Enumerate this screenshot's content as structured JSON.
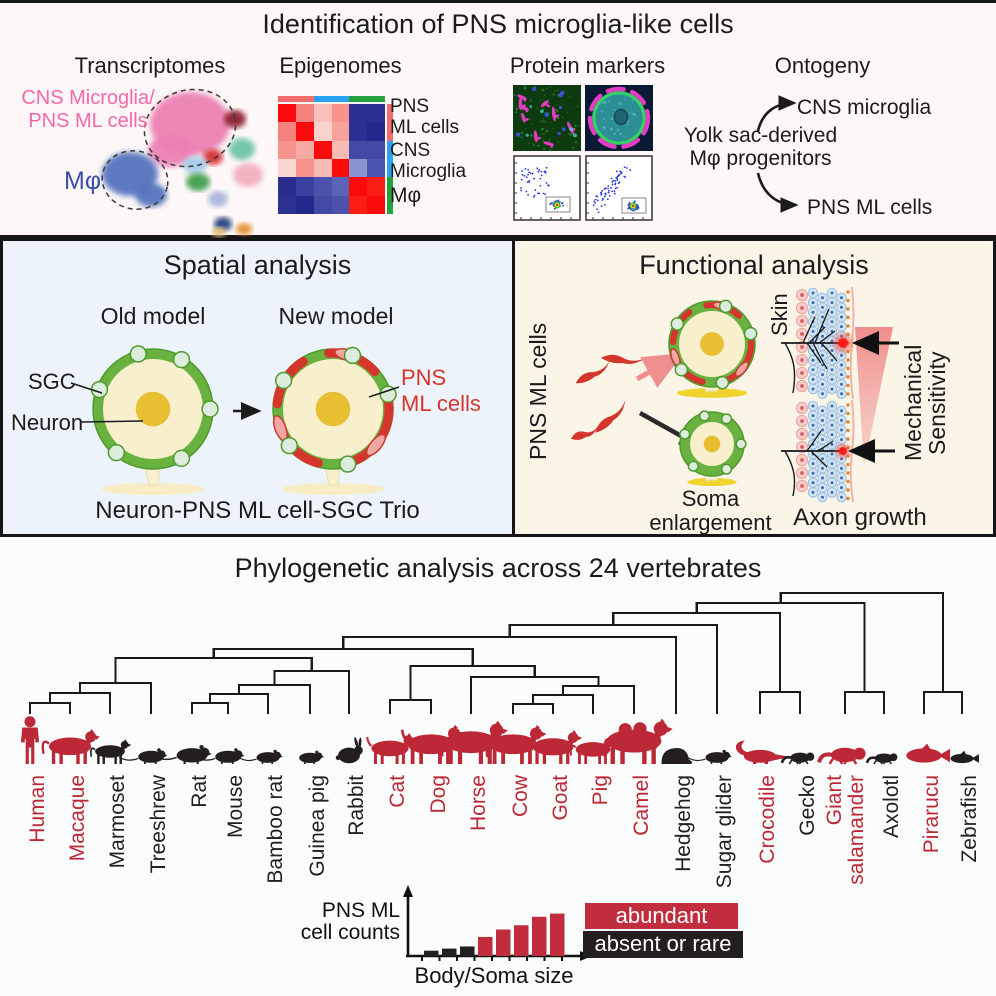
{
  "colors": {
    "ink": "#1b1b1b",
    "tree_line": "#191919",
    "abundant_red": "#bd2836",
    "absent_black": "#231f20",
    "pink_label": "#f768a8",
    "blue_label": "#3a4fa5",
    "pns_red": "#d5362c",
    "sgc_green": "#69b23f",
    "legend_abundant_bg": "#c22d3e",
    "legend_absent_bg": "#231f20",
    "spatial_bg": "#ecf3fa",
    "functional_bg": "#fbf5e7",
    "heatmap_annotation": [
      "#f26d6d",
      "#2aa3f0",
      "#23a13c"
    ],
    "umap_palette": [
      "#ec7fb2",
      "#5272bd",
      "#8e1f2f",
      "#6cc3a4",
      "#d62e32",
      "#f2aebc",
      "#a3cbe8",
      "#3f9e4d",
      "#a9b3dc",
      "#24407e",
      "#e4912c",
      "#e5c175"
    ]
  },
  "top": {
    "title": "Identification of PNS microglia-like cells",
    "transcriptomes": {
      "heading": "Transcriptomes",
      "cluster_label_line1": "CNS Microglia/",
      "cluster_label_line2": "PNS ML cells",
      "mphi_label": "Mφ"
    },
    "epigenomes": {
      "heading": "Epigenomes",
      "row_labels": [
        "PNS",
        "ML cells",
        "CNS",
        "Microglia",
        "Mφ"
      ],
      "heatmap_cells": [
        [
          "#fa0a0a",
          "#f5827c",
          "#f9c0ba",
          "#f5938c",
          "#2d2f92",
          "#2d2f92"
        ],
        [
          "#f5827c",
          "#fa0a0a",
          "#fad2cc",
          "#f7a39b",
          "#2d2f92",
          "#24278c"
        ],
        [
          "#f5938c",
          "#f7aaa1",
          "#fa0a0a",
          "#f9bcb5",
          "#424aa6",
          "#424aa6"
        ],
        [
          "#fbd8d3",
          "#f5938c",
          "#f9bcb5",
          "#fa0a0a",
          "#8b93d0",
          "#4c55b0"
        ],
        [
          "#2a2c8e",
          "#3a41a0",
          "#4a52ab",
          "#5a63b6",
          "#fa0a0a",
          "#fa1e14"
        ],
        [
          "#2f3295",
          "#24278c",
          "#424aa6",
          "#4a52ab",
          "#fa1e14",
          "#fa0a0a"
        ]
      ]
    },
    "protein_markers": {
      "heading": "Protein markers"
    },
    "ontogeny": {
      "heading": "Ontogeny",
      "source_line1": "Yolk sac-derived",
      "source_line2": "Mφ progenitors",
      "branch_cns": "CNS microglia",
      "branch_pns": "PNS ML cells"
    }
  },
  "spatial": {
    "title": "Spatial analysis",
    "old_label": "Old model",
    "new_label": "New model",
    "sgc": "SGC",
    "neuron": "Neuron",
    "pns_line1": "PNS",
    "pns_line2": "ML cells",
    "caption": "Neuron-PNS ML cell-SGC Trio"
  },
  "functional": {
    "title": "Functional analysis",
    "pns_cells": "PNS ML cells",
    "soma_line1": "Soma",
    "soma_line2": "enlargement",
    "skin": "Skin",
    "mech_line1": "Mechanical",
    "mech_line2": "Sensitivity",
    "axon_growth": "Axon growth"
  },
  "phylo": {
    "title": "Phylogenetic analysis across 24 vertebrates",
    "animals": [
      {
        "name": "Human",
        "status": "abundant",
        "icon": "human-icon"
      },
      {
        "name": "Macaque",
        "status": "abundant",
        "icon": "monkey-icon"
      },
      {
        "name": "Marmoset",
        "status": "absent_or_rare",
        "icon": "monkey-icon"
      },
      {
        "name": "Treeshrew",
        "status": "absent_or_rare",
        "icon": "rodent-icon"
      },
      {
        "name": "Rat",
        "status": "absent_or_rare",
        "icon": "rodent-icon"
      },
      {
        "name": "Mouse",
        "status": "absent_or_rare",
        "icon": "rodent-icon"
      },
      {
        "name": "Bamboo rat",
        "status": "absent_or_rare",
        "icon": "rodent-icon"
      },
      {
        "name": "Guinea pig",
        "status": "absent_or_rare",
        "icon": "rodent-icon"
      },
      {
        "name": "Rabbit",
        "status": "absent_or_rare",
        "icon": "rabbit-icon"
      },
      {
        "name": "Cat",
        "status": "abundant",
        "icon": "quadruped-icon"
      },
      {
        "name": "Dog",
        "status": "abundant",
        "icon": "quadruped-icon"
      },
      {
        "name": "Horse",
        "status": "abundant",
        "icon": "quadruped-icon"
      },
      {
        "name": "Cow",
        "status": "abundant",
        "icon": "quadruped-icon"
      },
      {
        "name": "Goat",
        "status": "abundant",
        "icon": "quadruped-icon"
      },
      {
        "name": "Pig",
        "status": "abundant",
        "icon": "quadruped-icon"
      },
      {
        "name": "Camel",
        "status": "abundant",
        "icon": "camel-icon"
      },
      {
        "name": "Hedgehog",
        "status": "absent_or_rare",
        "icon": "hedgehog-icon"
      },
      {
        "name": "Sugar glider",
        "status": "absent_or_rare",
        "icon": "rodent-icon"
      },
      {
        "name": "Crocodile",
        "status": "abundant",
        "icon": "crocodile-icon"
      },
      {
        "name": "Gecko",
        "status": "absent_or_rare",
        "icon": "lizard-icon"
      },
      {
        "name": "Giant salamander",
        "status": "abundant",
        "icon": "salamander-icon"
      },
      {
        "name": "Axolotl",
        "status": "absent_or_rare",
        "icon": "salamander-icon"
      },
      {
        "name": "Pirarucu",
        "status": "abundant",
        "icon": "fish-icon"
      },
      {
        "name": "Zebrafish",
        "status": "absent_or_rare",
        "icon": "fish-icon"
      }
    ],
    "legend": [
      {
        "label": "abundant",
        "bg": "#c22d3e"
      },
      {
        "label": "absent or rare",
        "bg": "#231f20"
      }
    ],
    "chart_data": {
      "type": "bar",
      "ylabel_line1": "PNS ML",
      "ylabel_line2": "cell counts",
      "xlabel": "Body/Soma size",
      "series": [
        {
          "name": "absent or rare",
          "color": "#231f20",
          "values": [
            1.0,
            1.4,
            1.8
          ]
        },
        {
          "name": "abundant",
          "color": "#c22d3e",
          "values": [
            3.6,
            5.0,
            5.8,
            7.4,
            8.0
          ]
        }
      ],
      "x_meaning": "body/soma size rank, increasing left to right"
    }
  }
}
